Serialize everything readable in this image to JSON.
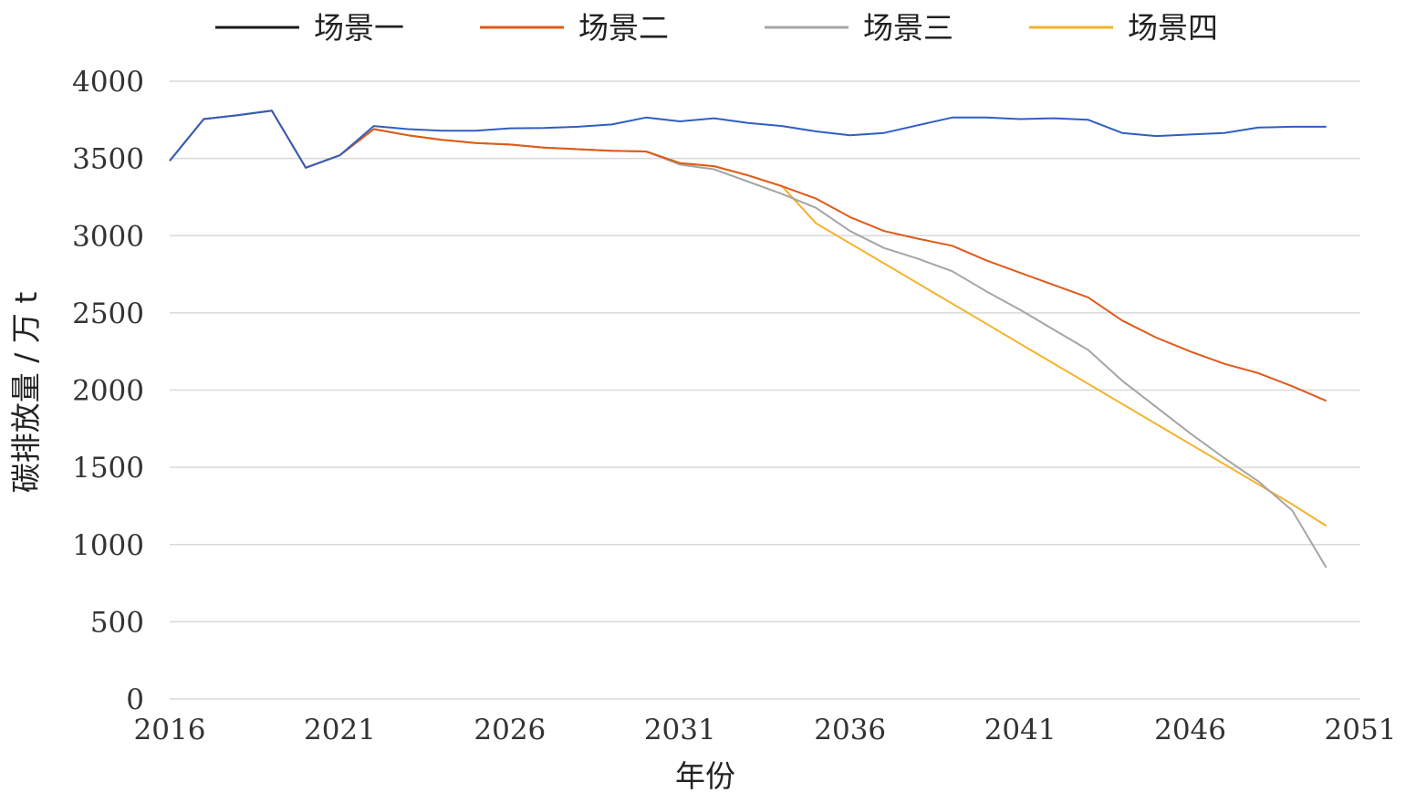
{
  "chart_data": {
    "type": "line",
    "title": "",
    "xlabel": "年份",
    "ylabel": "碳排放量 / 万 t",
    "xlim": [
      2016,
      2051
    ],
    "ylim": [
      0,
      4000
    ],
    "x_ticks": [
      2016,
      2021,
      2026,
      2031,
      2036,
      2041,
      2046,
      2051
    ],
    "y_ticks": [
      0,
      500,
      1000,
      1500,
      2000,
      2500,
      3000,
      3500,
      4000
    ],
    "grid": true,
    "legend_position": "top",
    "legend": [
      {
        "name": "场景一",
        "color": "#1a1a1a"
      },
      {
        "name": "场景二",
        "color": "#e05a1a"
      },
      {
        "name": "场景三",
        "color": "#a5a5a5"
      },
      {
        "name": "场景四",
        "color": "#f4b12a"
      }
    ],
    "x": [
      2016,
      2017,
      2018,
      2019,
      2020,
      2021,
      2022,
      2023,
      2024,
      2025,
      2026,
      2027,
      2028,
      2029,
      2030,
      2031,
      2032,
      2033,
      2034,
      2035,
      2036,
      2037,
      2038,
      2039,
      2040,
      2041,
      2042,
      2043,
      2044,
      2045,
      2046,
      2047,
      2048,
      2049,
      2050
    ],
    "series": [
      {
        "name": "场景一",
        "color": "#2f5fbf",
        "values": [
          3485,
          3755,
          3780,
          3810,
          3440,
          3520,
          3710,
          3690,
          3680,
          3680,
          3695,
          3697,
          3705,
          3720,
          3765,
          3740,
          3760,
          3730,
          3710,
          3675,
          3650,
          3665,
          3715,
          3765,
          3765,
          3755,
          3760,
          3750,
          3665,
          3645,
          3655,
          3665,
          3700,
          3705,
          3705
        ]
      },
      {
        "name": "场景二",
        "color": "#e05a1a",
        "values": [
          3485,
          3755,
          3780,
          3810,
          3440,
          3520,
          3690,
          3650,
          3620,
          3600,
          3590,
          3570,
          3560,
          3550,
          3545,
          3470,
          3450,
          3390,
          3320,
          3240,
          3120,
          3030,
          2980,
          2935,
          2840,
          2760,
          2680,
          2600,
          2450,
          2340,
          2250,
          2170,
          2110,
          2025,
          1930
        ]
      },
      {
        "name": "场景三",
        "color": "#a5a5a5",
        "values": [
          3485,
          3755,
          3780,
          3810,
          3440,
          3520,
          3690,
          3650,
          3620,
          3600,
          3590,
          3570,
          3560,
          3550,
          3545,
          3460,
          3430,
          3350,
          3270,
          3180,
          3030,
          2920,
          2850,
          2770,
          2640,
          2520,
          2390,
          2260,
          2060,
          1890,
          1720,
          1560,
          1410,
          1220,
          850
        ]
      },
      {
        "name": "场景四",
        "color": "#f4b12a",
        "values": [
          3485,
          3755,
          3780,
          3810,
          3440,
          3520,
          3690,
          3650,
          3620,
          3600,
          3590,
          3570,
          3560,
          3550,
          3545,
          3470,
          3450,
          3390,
          3320,
          3080,
          2950,
          2820,
          2690,
          2560,
          2430,
          2300,
          2170,
          2040,
          1910,
          1780,
          1650,
          1520,
          1390,
          1260,
          1120
        ]
      }
    ]
  }
}
